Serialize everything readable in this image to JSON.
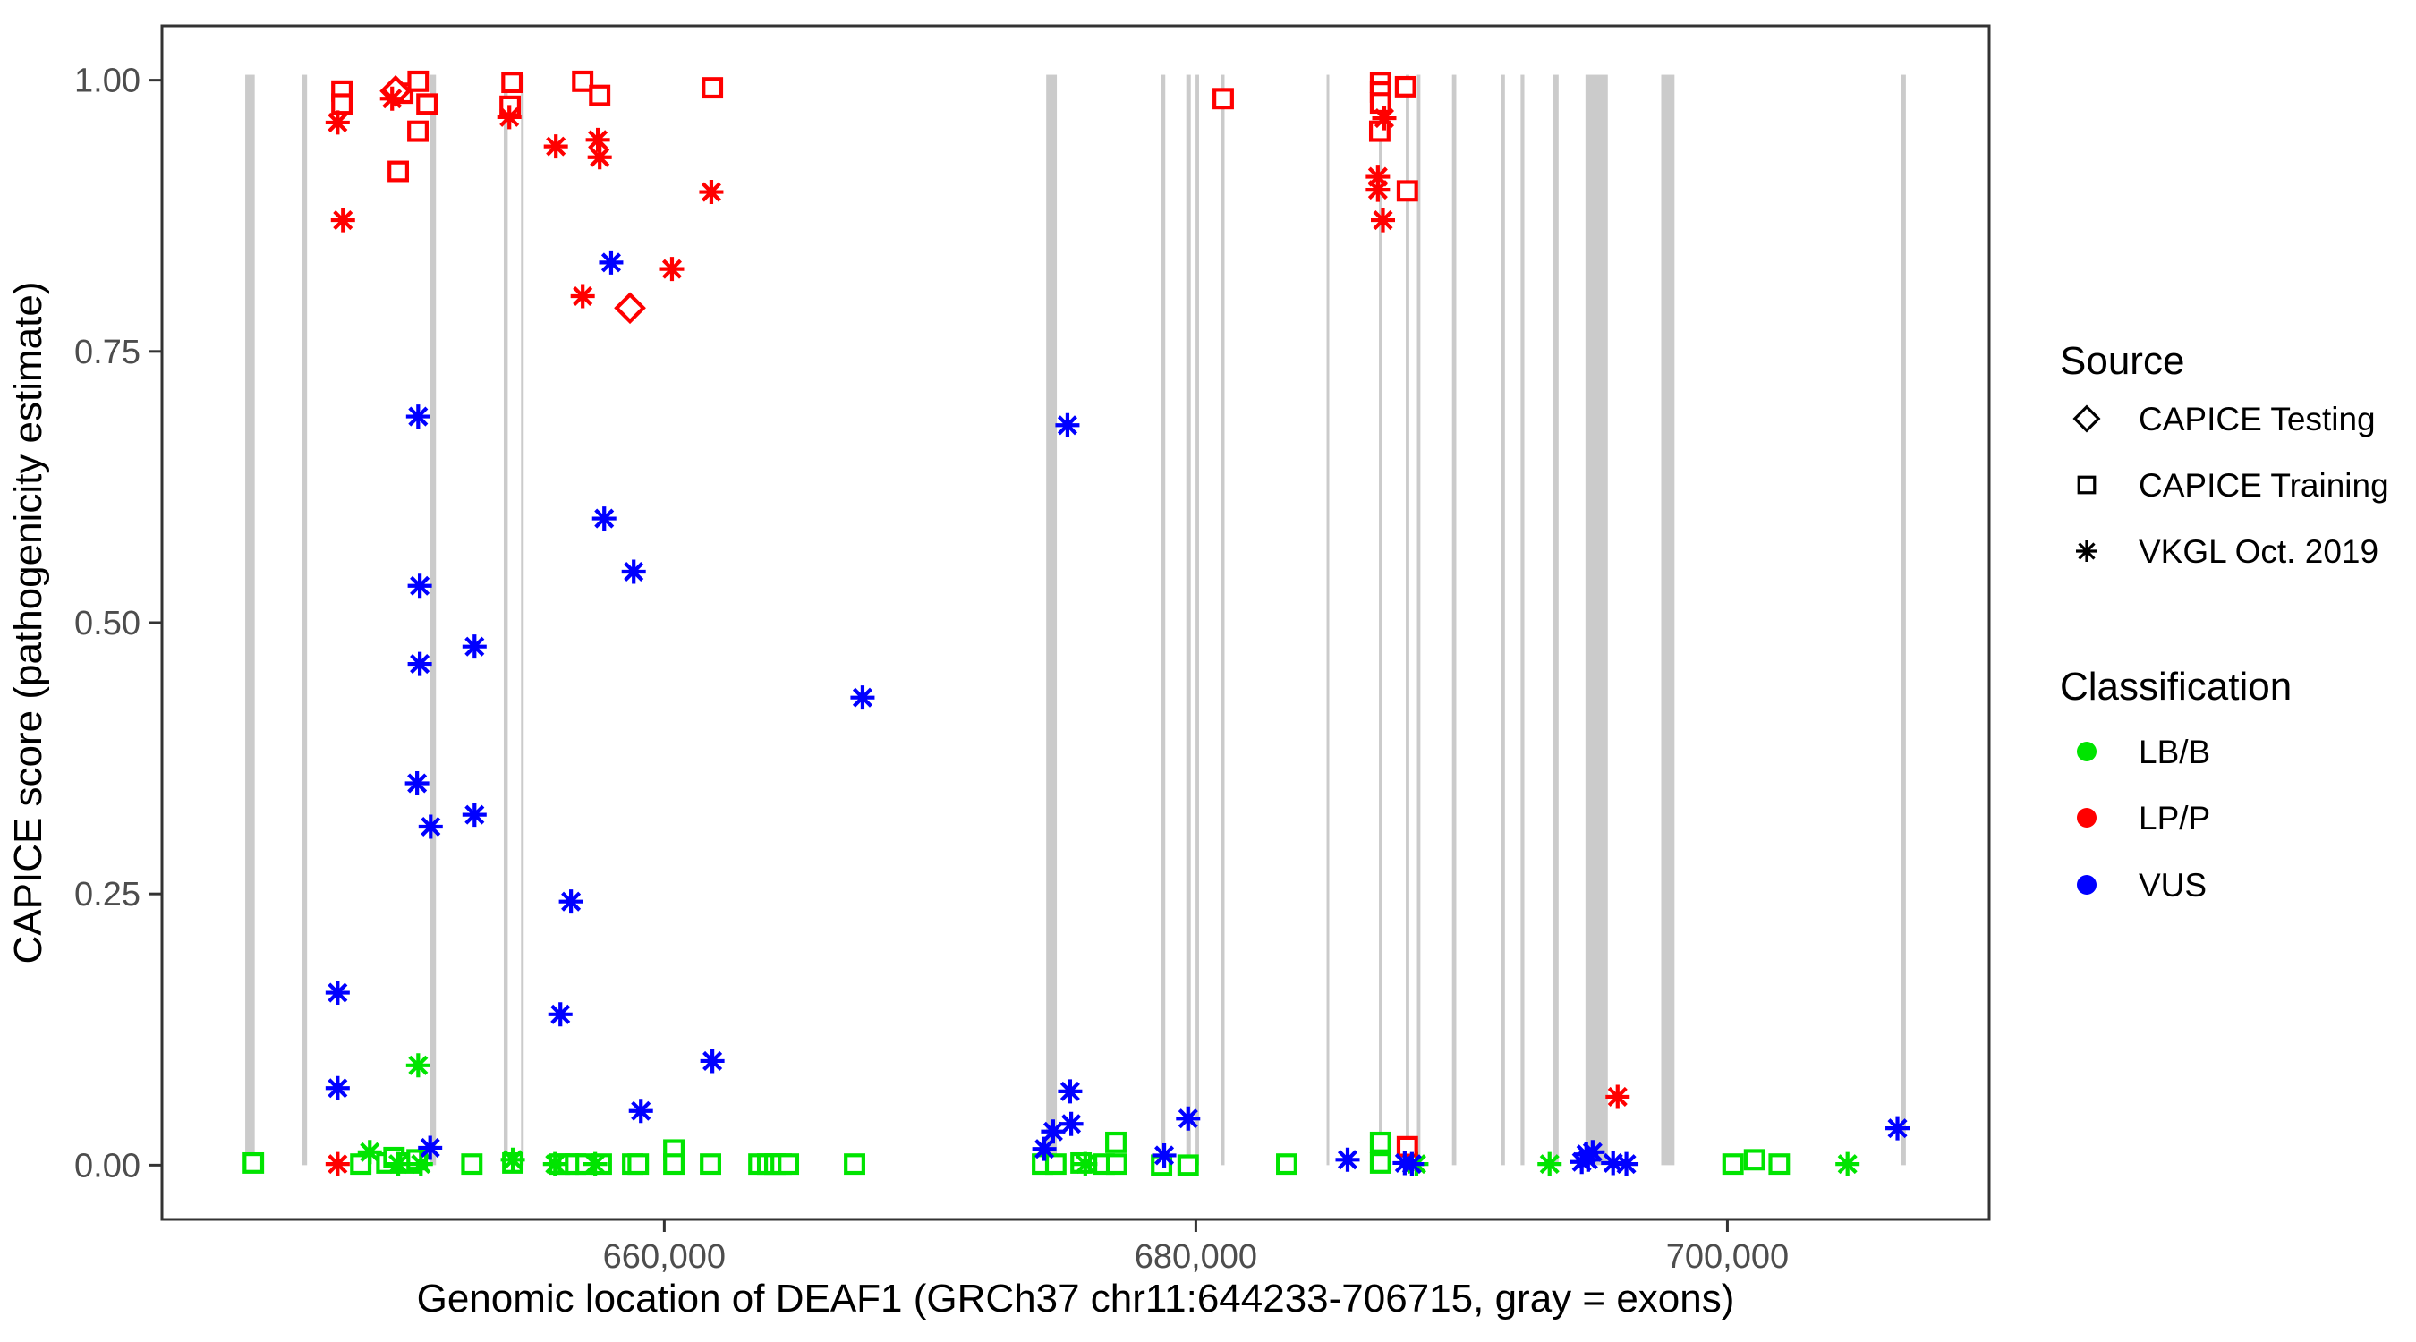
{
  "figure": {
    "x_title": "Genomic location of DEAF1 (GRCh37 chr11:644233-706715, gray = exons)",
    "y_title": "CAPICE score (pathogenicity estimate)"
  },
  "legend": {
    "source": {
      "title": "Source",
      "items": [
        {
          "label": "CAPICE Testing",
          "shape": "diamond"
        },
        {
          "label": "CAPICE Training",
          "shape": "square"
        },
        {
          "label": "VKGL Oct. 2019",
          "shape": "asterisk"
        }
      ]
    },
    "classification": {
      "title": "Classification",
      "items": [
        {
          "label": "LB/B",
          "color": "#00E400"
        },
        {
          "label": "LP/P",
          "color": "#FF0000"
        },
        {
          "label": "VUS",
          "color": "#0000FF"
        }
      ]
    }
  },
  "chart_data": {
    "type": "scatter",
    "xlabel": "Genomic location of DEAF1 (GRCh37 chr11:644233-706715, gray = exons)",
    "ylabel": "CAPICE score (pathogenicity estimate)",
    "x_domain": [
      641100,
      709850
    ],
    "y_domain": [
      -0.05,
      1.05
    ],
    "x_ticks": [
      {
        "value": 660000,
        "label": "660,000"
      },
      {
        "value": 680000,
        "label": "680,000"
      },
      {
        "value": 700000,
        "label": "700,000"
      }
    ],
    "y_ticks": [
      {
        "value": 0.0,
        "label": "0.00"
      },
      {
        "value": 0.25,
        "label": "0.25"
      },
      {
        "value": 0.5,
        "label": "0.50"
      },
      {
        "value": 0.75,
        "label": "0.75"
      },
      {
        "value": 1.0,
        "label": "1.00"
      }
    ],
    "colors": {
      "LB/B": "#00E400",
      "LP/P": "#FF0000",
      "VUS": "#0000FF",
      "exon": "#CBCBCB",
      "axis": "#333333"
    },
    "shapes": {
      "CAPICE Testing": "diamond",
      "CAPICE Training": "square",
      "VKGL Oct. 2019": "asterisk"
    },
    "exons": [
      [
        644233,
        644590
      ],
      [
        646360,
        646560
      ],
      [
        651170,
        651410
      ],
      [
        653960,
        654110
      ],
      [
        654610,
        654710
      ],
      [
        674370,
        674770
      ],
      [
        678680,
        678850
      ],
      [
        679640,
        679810
      ],
      [
        679990,
        680120
      ],
      [
        680950,
        681080
      ],
      [
        684920,
        685020
      ],
      [
        686890,
        687020
      ],
      [
        687900,
        688030
      ],
      [
        688320,
        688450
      ],
      [
        689640,
        689800
      ],
      [
        691470,
        691630
      ],
      [
        692220,
        692360
      ],
      [
        693450,
        693650
      ],
      [
        694660,
        695500
      ],
      [
        697510,
        698010
      ],
      [
        706520,
        706715
      ]
    ],
    "points": [
      {
        "pos": 644540,
        "score": 0.002,
        "cls": "LB/B",
        "src": "CAPICE Training"
      },
      {
        "pos": 648580,
        "score": 0.001,
        "cls": "LB/B",
        "src": "CAPICE Training"
      },
      {
        "pos": 649560,
        "score": 0.002,
        "cls": "LB/B",
        "src": "CAPICE Training"
      },
      {
        "pos": 649830,
        "score": 0.007,
        "cls": "LB/B",
        "src": "CAPICE Training"
      },
      {
        "pos": 650400,
        "score": 0.002,
        "cls": "LB/B",
        "src": "CAPICE Training"
      },
      {
        "pos": 650700,
        "score": 0.005,
        "cls": "LB/B",
        "src": "CAPICE Training"
      },
      {
        "pos": 652760,
        "score": 0.001,
        "cls": "LB/B",
        "src": "CAPICE Training"
      },
      {
        "pos": 654300,
        "score": 0.002,
        "cls": "LB/B",
        "src": "CAPICE Training"
      },
      {
        "pos": 656050,
        "score": 0.001,
        "cls": "LB/B",
        "src": "CAPICE Training"
      },
      {
        "pos": 656390,
        "score": 0.001,
        "cls": "LB/B",
        "src": "CAPICE Training"
      },
      {
        "pos": 656660,
        "score": 0.001,
        "cls": "LB/B",
        "src": "CAPICE Training"
      },
      {
        "pos": 657060,
        "score": 0.001,
        "cls": "LB/B",
        "src": "CAPICE Training"
      },
      {
        "pos": 657630,
        "score": 0.001,
        "cls": "LB/B",
        "src": "CAPICE Training"
      },
      {
        "pos": 658810,
        "score": 0.001,
        "cls": "LB/B",
        "src": "CAPICE Training"
      },
      {
        "pos": 659020,
        "score": 0.001,
        "cls": "LB/B",
        "src": "CAPICE Training"
      },
      {
        "pos": 660360,
        "score": 0.014,
        "cls": "LB/B",
        "src": "CAPICE Training"
      },
      {
        "pos": 660360,
        "score": 0.001,
        "cls": "LB/B",
        "src": "CAPICE Training"
      },
      {
        "pos": 661740,
        "score": 0.001,
        "cls": "LB/B",
        "src": "CAPICE Training"
      },
      {
        "pos": 663560,
        "score": 0.001,
        "cls": "LB/B",
        "src": "CAPICE Training"
      },
      {
        "pos": 663890,
        "score": 0.001,
        "cls": "LB/B",
        "src": "CAPICE Training"
      },
      {
        "pos": 664160,
        "score": 0.001,
        "cls": "LB/B",
        "src": "CAPICE Training"
      },
      {
        "pos": 664400,
        "score": 0.001,
        "cls": "LB/B",
        "src": "CAPICE Training"
      },
      {
        "pos": 664670,
        "score": 0.001,
        "cls": "LB/B",
        "src": "CAPICE Training"
      },
      {
        "pos": 667160,
        "score": 0.001,
        "cls": "LB/B",
        "src": "CAPICE Training"
      },
      {
        "pos": 674230,
        "score": 0.001,
        "cls": "LB/B",
        "src": "CAPICE Training"
      },
      {
        "pos": 674730,
        "score": 0.001,
        "cls": "LB/B",
        "src": "CAPICE Training"
      },
      {
        "pos": 675680,
        "score": 0.002,
        "cls": "LB/B",
        "src": "CAPICE Training"
      },
      {
        "pos": 676550,
        "score": 0.001,
        "cls": "LB/B",
        "src": "CAPICE Training"
      },
      {
        "pos": 677020,
        "score": 0.001,
        "cls": "LB/B",
        "src": "CAPICE Training"
      },
      {
        "pos": 676990,
        "score": 0.021,
        "cls": "LB/B",
        "src": "CAPICE Training"
      },
      {
        "pos": 678710,
        "score": 0.0,
        "cls": "LB/B",
        "src": "CAPICE Training"
      },
      {
        "pos": 679710,
        "score": 0.0,
        "cls": "LB/B",
        "src": "CAPICE Training"
      },
      {
        "pos": 683420,
        "score": 0.001,
        "cls": "LB/B",
        "src": "CAPICE Training"
      },
      {
        "pos": 686950,
        "score": 0.021,
        "cls": "LB/B",
        "src": "CAPICE Training"
      },
      {
        "pos": 686950,
        "score": 0.002,
        "cls": "LB/B",
        "src": "CAPICE Training"
      },
      {
        "pos": 700210,
        "score": 0.001,
        "cls": "LB/B",
        "src": "CAPICE Training"
      },
      {
        "pos": 701020,
        "score": 0.005,
        "cls": "LB/B",
        "src": "CAPICE Training"
      },
      {
        "pos": 701950,
        "score": 0.001,
        "cls": "LB/B",
        "src": "CAPICE Training"
      },
      {
        "pos": 650740,
        "score": 0.092,
        "cls": "LB/B",
        "src": "VKGL Oct. 2019"
      },
      {
        "pos": 648920,
        "score": 0.012,
        "cls": "LB/B",
        "src": "VKGL Oct. 2019"
      },
      {
        "pos": 649990,
        "score": 0.001,
        "cls": "LB/B",
        "src": "VKGL Oct. 2019"
      },
      {
        "pos": 650840,
        "score": 0.001,
        "cls": "LB/B",
        "src": "VKGL Oct. 2019"
      },
      {
        "pos": 654300,
        "score": 0.005,
        "cls": "LB/B",
        "src": "VKGL Oct. 2019"
      },
      {
        "pos": 655890,
        "score": 0.001,
        "cls": "LB/B",
        "src": "VKGL Oct. 2019"
      },
      {
        "pos": 657400,
        "score": 0.001,
        "cls": "LB/B",
        "src": "VKGL Oct. 2019"
      },
      {
        "pos": 675840,
        "score": 0.001,
        "cls": "LB/B",
        "src": "VKGL Oct. 2019"
      },
      {
        "pos": 688300,
        "score": 0.001,
        "cls": "LB/B",
        "src": "VKGL Oct. 2019"
      },
      {
        "pos": 693310,
        "score": 0.001,
        "cls": "LB/B",
        "src": "VKGL Oct. 2019"
      },
      {
        "pos": 704520,
        "score": 0.001,
        "cls": "LB/B",
        "src": "VKGL Oct. 2019"
      },
      {
        "pos": 647870,
        "score": 0.99,
        "cls": "LP/P",
        "src": "CAPICE Training"
      },
      {
        "pos": 647870,
        "score": 0.978,
        "cls": "LP/P",
        "src": "CAPICE Training"
      },
      {
        "pos": 650160,
        "score": 0.988,
        "cls": "LP/P",
        "src": "CAPICE Training"
      },
      {
        "pos": 650740,
        "score": 0.999,
        "cls": "LP/P",
        "src": "CAPICE Training"
      },
      {
        "pos": 651070,
        "score": 0.978,
        "cls": "LP/P",
        "src": "CAPICE Training"
      },
      {
        "pos": 650730,
        "score": 0.953,
        "cls": "LP/P",
        "src": "CAPICE Training"
      },
      {
        "pos": 649990,
        "score": 0.916,
        "cls": "LP/P",
        "src": "CAPICE Training"
      },
      {
        "pos": 654270,
        "score": 0.998,
        "cls": "LP/P",
        "src": "CAPICE Training"
      },
      {
        "pos": 654200,
        "score": 0.976,
        "cls": "LP/P",
        "src": "CAPICE Training"
      },
      {
        "pos": 656930,
        "score": 0.999,
        "cls": "LP/P",
        "src": "CAPICE Training"
      },
      {
        "pos": 657570,
        "score": 0.986,
        "cls": "LP/P",
        "src": "CAPICE Training"
      },
      {
        "pos": 661810,
        "score": 0.993,
        "cls": "LP/P",
        "src": "CAPICE Training"
      },
      {
        "pos": 681030,
        "score": 0.983,
        "cls": "LP/P",
        "src": "CAPICE Training"
      },
      {
        "pos": 686950,
        "score": 0.998,
        "cls": "LP/P",
        "src": "CAPICE Training"
      },
      {
        "pos": 686950,
        "score": 0.989,
        "cls": "LP/P",
        "src": "CAPICE Training"
      },
      {
        "pos": 686950,
        "score": 0.979,
        "cls": "LP/P",
        "src": "CAPICE Training"
      },
      {
        "pos": 687890,
        "score": 0.994,
        "cls": "LP/P",
        "src": "CAPICE Training"
      },
      {
        "pos": 686920,
        "score": 0.953,
        "cls": "LP/P",
        "src": "CAPICE Training"
      },
      {
        "pos": 687960,
        "score": 0.898,
        "cls": "LP/P",
        "src": "CAPICE Training"
      },
      {
        "pos": 687960,
        "score": 0.017,
        "cls": "LP/P",
        "src": "CAPICE Training"
      },
      {
        "pos": 649890,
        "score": 0.99,
        "cls": "LP/P",
        "src": "CAPICE Testing"
      },
      {
        "pos": 658710,
        "score": 0.79,
        "cls": "LP/P",
        "src": "CAPICE Testing"
      },
      {
        "pos": 647710,
        "score": 0.961,
        "cls": "LP/P",
        "src": "VKGL Oct. 2019"
      },
      {
        "pos": 647910,
        "score": 0.871,
        "cls": "LP/P",
        "src": "VKGL Oct. 2019"
      },
      {
        "pos": 649760,
        "score": 0.983,
        "cls": "LP/P",
        "src": "VKGL Oct. 2019"
      },
      {
        "pos": 654170,
        "score": 0.966,
        "cls": "LP/P",
        "src": "VKGL Oct. 2019"
      },
      {
        "pos": 655920,
        "score": 0.939,
        "cls": "LP/P",
        "src": "VKGL Oct. 2019"
      },
      {
        "pos": 657500,
        "score": 0.945,
        "cls": "LP/P",
        "src": "VKGL Oct. 2019"
      },
      {
        "pos": 657570,
        "score": 0.929,
        "cls": "LP/P",
        "src": "VKGL Oct. 2019"
      },
      {
        "pos": 656930,
        "score": 0.801,
        "cls": "LP/P",
        "src": "VKGL Oct. 2019"
      },
      {
        "pos": 660290,
        "score": 0.826,
        "cls": "LP/P",
        "src": "VKGL Oct. 2019"
      },
      {
        "pos": 661770,
        "score": 0.897,
        "cls": "LP/P",
        "src": "VKGL Oct. 2019"
      },
      {
        "pos": 687090,
        "score": 0.965,
        "cls": "LP/P",
        "src": "VKGL Oct. 2019"
      },
      {
        "pos": 686850,
        "score": 0.911,
        "cls": "LP/P",
        "src": "VKGL Oct. 2019"
      },
      {
        "pos": 686850,
        "score": 0.899,
        "cls": "LP/P",
        "src": "VKGL Oct. 2019"
      },
      {
        "pos": 687040,
        "score": 0.871,
        "cls": "LP/P",
        "src": "VKGL Oct. 2019"
      },
      {
        "pos": 647710,
        "score": 0.001,
        "cls": "LP/P",
        "src": "VKGL Oct. 2019"
      },
      {
        "pos": 695870,
        "score": 0.063,
        "cls": "LP/P",
        "src": "VKGL Oct. 2019"
      },
      {
        "pos": 658000,
        "score": 0.832,
        "cls": "VUS",
        "src": "VKGL Oct. 2019"
      },
      {
        "pos": 650740,
        "score": 0.69,
        "cls": "VUS",
        "src": "VKGL Oct. 2019"
      },
      {
        "pos": 657740,
        "score": 0.596,
        "cls": "VUS",
        "src": "VKGL Oct. 2019"
      },
      {
        "pos": 658850,
        "score": 0.547,
        "cls": "VUS",
        "src": "VKGL Oct. 2019"
      },
      {
        "pos": 650800,
        "score": 0.534,
        "cls": "VUS",
        "src": "VKGL Oct. 2019"
      },
      {
        "pos": 652860,
        "score": 0.478,
        "cls": "VUS",
        "src": "VKGL Oct. 2019"
      },
      {
        "pos": 650800,
        "score": 0.462,
        "cls": "VUS",
        "src": "VKGL Oct. 2019"
      },
      {
        "pos": 667460,
        "score": 0.431,
        "cls": "VUS",
        "src": "VKGL Oct. 2019"
      },
      {
        "pos": 650700,
        "score": 0.352,
        "cls": "VUS",
        "src": "VKGL Oct. 2019"
      },
      {
        "pos": 652860,
        "score": 0.323,
        "cls": "VUS",
        "src": "VKGL Oct. 2019"
      },
      {
        "pos": 651210,
        "score": 0.312,
        "cls": "VUS",
        "src": "VKGL Oct. 2019"
      },
      {
        "pos": 656490,
        "score": 0.243,
        "cls": "VUS",
        "src": "VKGL Oct. 2019"
      },
      {
        "pos": 647710,
        "score": 0.159,
        "cls": "VUS",
        "src": "VKGL Oct. 2019"
      },
      {
        "pos": 656090,
        "score": 0.139,
        "cls": "VUS",
        "src": "VKGL Oct. 2019"
      },
      {
        "pos": 661810,
        "score": 0.096,
        "cls": "VUS",
        "src": "VKGL Oct. 2019"
      },
      {
        "pos": 647710,
        "score": 0.071,
        "cls": "VUS",
        "src": "VKGL Oct. 2019"
      },
      {
        "pos": 659120,
        "score": 0.05,
        "cls": "VUS",
        "src": "VKGL Oct. 2019"
      },
      {
        "pos": 651190,
        "score": 0.016,
        "cls": "VUS",
        "src": "VKGL Oct. 2019"
      },
      {
        "pos": 675170,
        "score": 0.682,
        "cls": "VUS",
        "src": "VKGL Oct. 2019"
      },
      {
        "pos": 675270,
        "score": 0.068,
        "cls": "VUS",
        "src": "VKGL Oct. 2019"
      },
      {
        "pos": 675310,
        "score": 0.038,
        "cls": "VUS",
        "src": "VKGL Oct. 2019"
      },
      {
        "pos": 674630,
        "score": 0.031,
        "cls": "VUS",
        "src": "VKGL Oct. 2019"
      },
      {
        "pos": 674300,
        "score": 0.015,
        "cls": "VUS",
        "src": "VKGL Oct. 2019"
      },
      {
        "pos": 679710,
        "score": 0.043,
        "cls": "VUS",
        "src": "VKGL Oct. 2019"
      },
      {
        "pos": 678810,
        "score": 0.009,
        "cls": "VUS",
        "src": "VKGL Oct. 2019"
      },
      {
        "pos": 685710,
        "score": 0.005,
        "cls": "VUS",
        "src": "VKGL Oct. 2019"
      },
      {
        "pos": 687860,
        "score": 0.002,
        "cls": "VUS",
        "src": "VKGL Oct. 2019"
      },
      {
        "pos": 688130,
        "score": 0.001,
        "cls": "VUS",
        "src": "VKGL Oct. 2019"
      },
      {
        "pos": 694520,
        "score": 0.003,
        "cls": "VUS",
        "src": "VKGL Oct. 2019"
      },
      {
        "pos": 694690,
        "score": 0.01,
        "cls": "VUS",
        "src": "VKGL Oct. 2019"
      },
      {
        "pos": 694760,
        "score": 0.005,
        "cls": "VUS",
        "src": "VKGL Oct. 2019"
      },
      {
        "pos": 694930,
        "score": 0.012,
        "cls": "VUS",
        "src": "VKGL Oct. 2019"
      },
      {
        "pos": 695700,
        "score": 0.002,
        "cls": "VUS",
        "src": "VKGL Oct. 2019"
      },
      {
        "pos": 696200,
        "score": 0.001,
        "cls": "VUS",
        "src": "VKGL Oct. 2019"
      },
      {
        "pos": 706400,
        "score": 0.034,
        "cls": "VUS",
        "src": "VKGL Oct. 2019"
      }
    ]
  }
}
